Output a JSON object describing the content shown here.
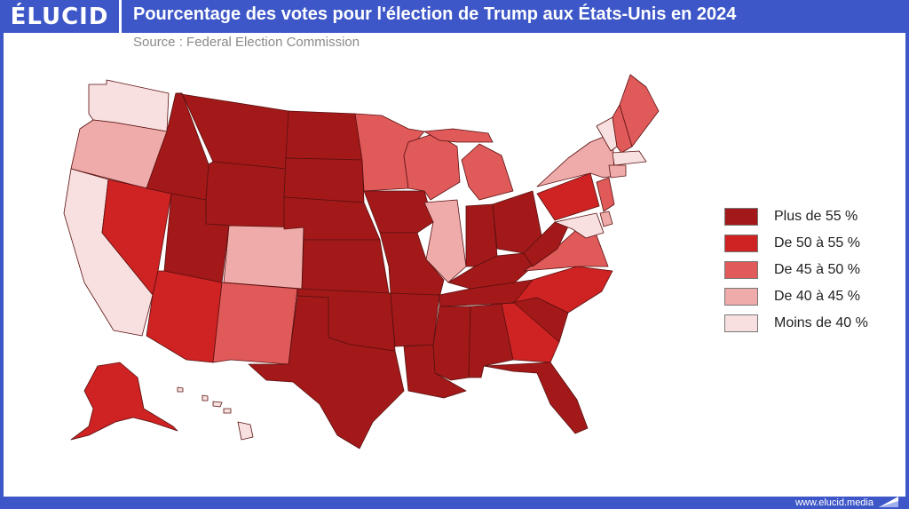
{
  "header": {
    "logo": "ÉLUCID",
    "title": "Pourcentage des votes pour l'élection de Trump aux États-Unis en 2024",
    "source": "Source : Federal Election Commission"
  },
  "footer": {
    "url": "www.elucid.media"
  },
  "colors": {
    "frame": "#3d57c8",
    "plus_55": "#a31919",
    "c50_55": "#cf2222",
    "c45_50": "#e05a5a",
    "c40_45": "#efaaaa",
    "moins_40": "#f8e0e0"
  },
  "legend": [
    {
      "label": "Plus de 55 %",
      "color": "#a31919"
    },
    {
      "label": "De 50 à 55 %",
      "color": "#cf2222"
    },
    {
      "label": "De 45 à 50 %",
      "color": "#e05a5a"
    },
    {
      "label": "De 40 à 45 %",
      "color": "#efaaaa"
    },
    {
      "label": "Moins de 40 %",
      "color": "#f8e0e0"
    }
  ],
  "map_data": {
    "category_by_state": {
      "WA": "moins_40",
      "OR": "c40_45",
      "CA": "moins_40",
      "NV": "c50_55",
      "ID": "plus_55",
      "MT": "plus_55",
      "WY": "plus_55",
      "UT": "plus_55",
      "AZ": "c50_55",
      "CO": "c40_45",
      "NM": "c45_50",
      "ND": "plus_55",
      "SD": "plus_55",
      "NE": "plus_55",
      "KS": "plus_55",
      "OK": "plus_55",
      "TX": "plus_55",
      "MN": "c45_50",
      "IA": "plus_55",
      "MO": "plus_55",
      "AR": "plus_55",
      "LA": "plus_55",
      "WI": "c45_50",
      "IL": "c40_45",
      "MI": "c45_50",
      "IN": "plus_55",
      "OH": "plus_55",
      "KY": "plus_55",
      "TN": "plus_55",
      "MS": "plus_55",
      "AL": "plus_55",
      "GA": "c50_55",
      "FL": "plus_55",
      "SC": "plus_55",
      "NC": "c50_55",
      "VA": "c45_50",
      "WV": "plus_55",
      "PA": "c50_55",
      "NY": "c40_45",
      "VT": "moins_40",
      "NH": "c45_50",
      "ME": "c45_50",
      "MA": "moins_40",
      "CT": "c40_45",
      "NJ": "c45_50",
      "DE": "c40_45",
      "MD": "moins_40",
      "AK": "c50_55",
      "HI": "moins_40"
    }
  }
}
